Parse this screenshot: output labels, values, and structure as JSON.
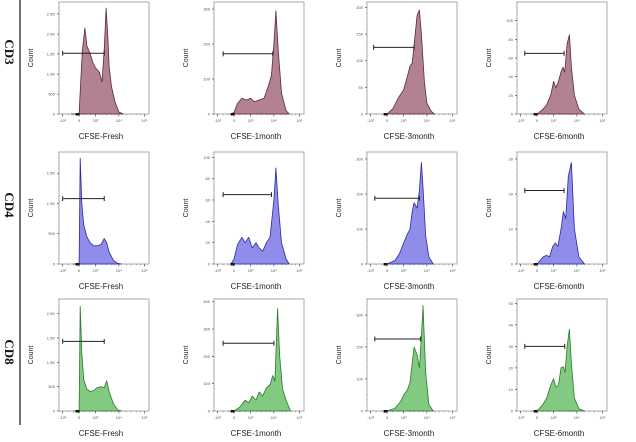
{
  "figure": {
    "row_labels": [
      "CD3",
      "CD4",
      "CD8"
    ],
    "col_labels": [
      "CFSE-Fresh",
      "CFSE-1month",
      "CFSE-3month",
      "CFSE-6month"
    ]
  },
  "chart_data": [
    {
      "type": "area",
      "row": "CD3",
      "title": "",
      "xlabel": "CFSE-Fresh",
      "ylabel": "Count",
      "color": "#a56b7f",
      "line_color": "#5a2a38",
      "x_scale": "biexponential",
      "x_ticks": [
        "-10^3",
        "0",
        "10^3",
        "10^4",
        "10^5"
      ],
      "y_ticks": [
        "0",
        "500",
        "1.0K",
        "1.5K",
        "2.0K",
        "2.5K"
      ],
      "ylim": [
        0,
        2800
      ],
      "gate": {
        "x_start": -1000,
        "x_end": 2500,
        "y": 1520
      },
      "x": [
        -300,
        0,
        50,
        100,
        200,
        300,
        500,
        700,
        1000,
        1500,
        2000,
        2500,
        3000,
        3500,
        4000,
        5000,
        7000,
        10000,
        15000
      ],
      "y": [
        0,
        0,
        900,
        1600,
        2150,
        1700,
        1500,
        1300,
        1150,
        1050,
        800,
        1600,
        2650,
        2000,
        1200,
        700,
        300,
        50,
        0
      ]
    },
    {
      "type": "area",
      "row": "CD3",
      "xlabel": "CFSE-1month",
      "ylabel": "Count",
      "color": "#a56b7f",
      "line_color": "#5a2a38",
      "x_scale": "biexponential",
      "x_ticks": [
        "-10^3",
        "0",
        "10^3",
        "10^4",
        "10^5"
      ],
      "y_ticks": [
        "0",
        "100",
        "200",
        "300"
      ],
      "ylim": [
        0,
        320
      ],
      "gate": {
        "x_start": -500,
        "x_end": 9000,
        "y": 172
      },
      "x": [
        -100,
        0,
        100,
        300,
        600,
        1000,
        1500,
        2500,
        4000,
        6000,
        8000,
        10000,
        12000,
        15000,
        20000,
        30000,
        40000
      ],
      "y": [
        0,
        5,
        30,
        45,
        40,
        45,
        35,
        40,
        45,
        80,
        110,
        200,
        295,
        180,
        60,
        10,
        0
      ]
    },
    {
      "type": "area",
      "row": "CD3",
      "xlabel": "CFSE-3month",
      "ylabel": "Count",
      "color": "#a56b7f",
      "line_color": "#5a2a38",
      "x_scale": "biexponential",
      "x_ticks": [
        "-10^3",
        "0",
        "10^3",
        "10^4",
        "10^5"
      ],
      "y_ticks": [
        "0",
        "50",
        "100",
        "150",
        "200"
      ],
      "ylim": [
        0,
        210
      ],
      "gate": {
        "x_start": -700,
        "x_end": 3000,
        "y": 125
      },
      "x": [
        0,
        200,
        500,
        800,
        1000,
        1500,
        2000,
        2500,
        3000,
        4000,
        5000,
        6000,
        8000,
        10000,
        15000,
        20000
      ],
      "y": [
        0,
        10,
        30,
        40,
        45,
        70,
        90,
        95,
        130,
        185,
        195,
        150,
        60,
        20,
        5,
        0
      ]
    },
    {
      "type": "area",
      "row": "CD3",
      "xlabel": "CFSE-6month",
      "ylabel": "Count",
      "color": "#a56b7f",
      "line_color": "#5a2a38",
      "x_scale": "biexponential",
      "x_ticks": [
        "-10^3",
        "0",
        "10^3",
        "10^4",
        "10^5"
      ],
      "y_ticks": [
        "0",
        "20",
        "40",
        "60",
        "80",
        "100"
      ],
      "ylim": [
        0,
        120
      ],
      "gate": {
        "x_start": -600,
        "x_end": 3000,
        "y": 65
      },
      "x": [
        0,
        200,
        400,
        700,
        1000,
        1300,
        1700,
        2200,
        2700,
        3200,
        4000,
        5000,
        6000,
        8000,
        12000,
        20000
      ],
      "y": [
        0,
        5,
        10,
        20,
        35,
        28,
        35,
        45,
        50,
        45,
        75,
        85,
        50,
        20,
        5,
        0
      ]
    },
    {
      "type": "area",
      "row": "CD4",
      "xlabel": "CFSE-Fresh",
      "ylabel": "Count",
      "color": "#7b78e6",
      "line_color": "#2a2aa0",
      "x_scale": "biexponential",
      "x_ticks": [
        "-10^3",
        "0",
        "10^3",
        "10^4",
        "10^5"
      ],
      "y_ticks": [
        "0",
        "500",
        "1.0K",
        "1.5K"
      ],
      "ylim": [
        0,
        1850
      ],
      "gate": {
        "x_start": -1000,
        "x_end": 2500,
        "y": 1080
      },
      "x": [
        -200,
        0,
        30,
        80,
        150,
        300,
        500,
        800,
        1200,
        1800,
        2500,
        3200,
        4000,
        6000,
        9000,
        13000
      ],
      "y": [
        0,
        0,
        1750,
        1000,
        650,
        450,
        350,
        300,
        300,
        320,
        420,
        350,
        200,
        60,
        10,
        0
      ]
    },
    {
      "type": "area",
      "row": "CD4",
      "xlabel": "CFSE-1month",
      "ylabel": "Count",
      "color": "#7b78e6",
      "line_color": "#2a2aa0",
      "x_scale": "biexponential",
      "x_ticks": [
        "-10^3",
        "0",
        "10^3",
        "10^4",
        "10^5"
      ],
      "y_ticks": [
        "0",
        "20",
        "40",
        "60",
        "80",
        "100"
      ],
      "ylim": [
        0,
        105
      ],
      "gate": {
        "x_start": -500,
        "x_end": 8000,
        "y": 65
      },
      "x": [
        -100,
        0,
        100,
        300,
        500,
        800,
        1200,
        1800,
        2500,
        3500,
        5000,
        7000,
        10000,
        12000,
        15000,
        20000,
        30000,
        40000
      ],
      "y": [
        0,
        5,
        18,
        25,
        20,
        25,
        15,
        20,
        15,
        12,
        20,
        25,
        60,
        90,
        55,
        20,
        5,
        0
      ]
    },
    {
      "type": "area",
      "row": "CD4",
      "xlabel": "CFSE-3month",
      "ylabel": "Count",
      "color": "#7b78e6",
      "line_color": "#2a2aa0",
      "x_scale": "biexponential",
      "x_ticks": [
        "-10^3",
        "0",
        "10^3",
        "10^4",
        "10^5"
      ],
      "y_ticks": [
        "0",
        "100",
        "200",
        "300"
      ],
      "ylim": [
        0,
        320
      ],
      "gate": {
        "x_start": -600,
        "x_end": 5000,
        "y": 188
      },
      "x": [
        0,
        300,
        600,
        1000,
        1500,
        2000,
        2500,
        3000,
        4000,
        5000,
        6000,
        7000,
        9000,
        12000,
        18000
      ],
      "y": [
        0,
        10,
        30,
        60,
        85,
        100,
        150,
        175,
        160,
        210,
        290,
        220,
        80,
        20,
        0
      ]
    },
    {
      "type": "area",
      "row": "CD4",
      "xlabel": "CFSE-6month",
      "ylabel": "Count",
      "color": "#7b78e6",
      "line_color": "#2a2aa0",
      "x_scale": "biexponential",
      "x_ticks": [
        "-10^3",
        "0",
        "10^3",
        "10^4",
        "10^5"
      ],
      "y_ticks": [
        "0",
        "10",
        "20",
        "30"
      ],
      "ylim": [
        0,
        32
      ],
      "gate": {
        "x_start": -600,
        "x_end": 3000,
        "y": 21
      },
      "x": [
        0,
        200,
        400,
        600,
        900,
        1200,
        1600,
        2200,
        2800,
        3500,
        4500,
        6000,
        8000,
        12000,
        20000
      ],
      "y": [
        0,
        2,
        2.5,
        2,
        5,
        6,
        5,
        10,
        15,
        13,
        25,
        29,
        10,
        2,
        0
      ]
    },
    {
      "type": "area",
      "row": "CD8",
      "xlabel": "CFSE-Fresh",
      "ylabel": "Count",
      "color": "#6cbf6c",
      "line_color": "#2a7a2a",
      "x_scale": "biexponential",
      "x_ticks": [
        "-10^3",
        "0",
        "10^3",
        "10^4",
        "10^5"
      ],
      "y_ticks": [
        "0",
        "500",
        "1.0K",
        "1.5K",
        "2.0K"
      ],
      "ylim": [
        0,
        2300
      ],
      "gate": {
        "x_start": -1000,
        "x_end": 2500,
        "y": 1430
      },
      "x": [
        -200,
        0,
        30,
        80,
        150,
        300,
        500,
        800,
        1200,
        1800,
        2500,
        3200,
        4000,
        6000,
        9000,
        13000
      ],
      "y": [
        0,
        0,
        2150,
        1200,
        650,
        450,
        400,
        420,
        480,
        500,
        480,
        620,
        400,
        150,
        20,
        0
      ]
    },
    {
      "type": "area",
      "row": "CD8",
      "xlabel": "CFSE-1month",
      "ylabel": "Count",
      "color": "#6cbf6c",
      "line_color": "#2a7a2a",
      "x_scale": "biexponential",
      "x_ticks": [
        "-10^3",
        "0",
        "10^3",
        "10^4",
        "10^5"
      ],
      "y_ticks": [
        "0",
        "100",
        "200",
        "300",
        "400"
      ],
      "ylim": [
        0,
        410
      ],
      "gate": {
        "x_start": -500,
        "x_end": 10000,
        "y": 248
      },
      "x": [
        0,
        200,
        500,
        800,
        1200,
        1800,
        2500,
        3500,
        5000,
        7000,
        9000,
        11000,
        14000,
        17000,
        22000,
        30000,
        45000
      ],
      "y": [
        0,
        15,
        40,
        30,
        55,
        40,
        70,
        55,
        85,
        95,
        130,
        110,
        375,
        200,
        80,
        40,
        0
      ]
    },
    {
      "type": "area",
      "row": "CD8",
      "xlabel": "CFSE-3month",
      "ylabel": "Count",
      "color": "#6cbf6c",
      "line_color": "#2a7a2a",
      "x_scale": "biexponential",
      "x_ticks": [
        "-10^3",
        "0",
        "10^3",
        "10^4",
        "10^5"
      ],
      "y_ticks": [
        "0",
        "100",
        "200",
        "300"
      ],
      "ylim": [
        0,
        350
      ],
      "gate": {
        "x_start": -600,
        "x_end": 5500,
        "y": 225
      },
      "x": [
        0,
        300,
        700,
        1000,
        1500,
        2000,
        2500,
        3000,
        4000,
        5000,
        6000,
        7000,
        9000,
        12000,
        18000
      ],
      "y": [
        0,
        8,
        30,
        50,
        65,
        90,
        150,
        200,
        175,
        135,
        230,
        330,
        120,
        20,
        0
      ]
    },
    {
      "type": "area",
      "row": "CD8",
      "xlabel": "CFSE-6month",
      "ylabel": "Count",
      "color": "#6cbf6c",
      "line_color": "#2a7a2a",
      "x_scale": "biexponential",
      "x_ticks": [
        "-10^3",
        "0",
        "10^3",
        "10^4",
        "10^5"
      ],
      "y_ticks": [
        "0",
        "10",
        "20",
        "30",
        "40",
        "50"
      ],
      "ylim": [
        0,
        52
      ],
      "gate": {
        "x_start": -600,
        "x_end": 3200,
        "y": 30
      },
      "x": [
        0,
        200,
        400,
        700,
        1000,
        1300,
        1700,
        2200,
        2800,
        3300,
        4000,
        5000,
        6000,
        8000,
        12000,
        20000
      ],
      "y": [
        0,
        3,
        6,
        12,
        15,
        11,
        12,
        20,
        20.5,
        18,
        30,
        38,
        22,
        6,
        1,
        0
      ]
    }
  ]
}
